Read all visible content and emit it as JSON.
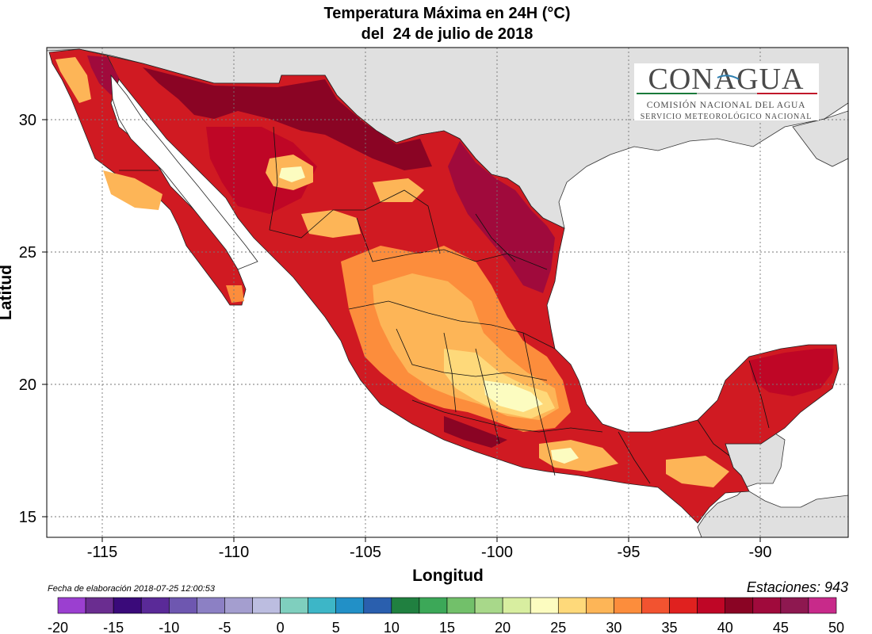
{
  "title_line1": "Temperatura Máxima en 24H (°C)",
  "title_line2": "del  24 de julio de 2018",
  "x_axis": {
    "title": "Longitud",
    "ticks": [
      "-115",
      "-110",
      "-105",
      "-100",
      "-95",
      "-90"
    ]
  },
  "y_axis": {
    "title": "Latitud",
    "ticks": [
      "30",
      "25",
      "20",
      "15"
    ]
  },
  "logo": {
    "name": "CONAGUA",
    "line1": "COMISIÓN NACIONAL DEL AGUA",
    "line2": "SERVICIO METEOROLÓGICO NACIONAL"
  },
  "fecha": "Fecha de elaboración 2018-07-25 12:00:53",
  "estaciones": "Estaciones:  943",
  "colorbar": {
    "labels": [
      "-20",
      "-15",
      "-10",
      "-5",
      "0",
      "5",
      "10",
      "15",
      "20",
      "25",
      "30",
      "35",
      "40",
      "45",
      "50"
    ],
    "colors": [
      "#9b3fd0",
      "#6a2d90",
      "#3a0a7a",
      "#5a2a98",
      "#6e57b0",
      "#8c80c4",
      "#a49ecf",
      "#bcbde0",
      "#7fcfbe",
      "#3db6c7",
      "#2290c7",
      "#2a5fae",
      "#208040",
      "#3ca858",
      "#72c06a",
      "#a8d88a",
      "#d8eea0",
      "#fcfcc0",
      "#fed97a",
      "#fdb557",
      "#fc8d3c",
      "#f25330",
      "#e0211f",
      "#bf0626",
      "#8a0424",
      "#a00a3c",
      "#8e1850",
      "#c82a8a"
    ]
  },
  "map": {
    "ocean_color": "#ffffff",
    "land_outside_color": "#e0e0e0",
    "temperature_colors": {
      "t25": "#fcfcc0",
      "t27": "#fed97a",
      "t30": "#fdb557",
      "t32": "#fc8d3c",
      "t35": "#f25330",
      "t37": "#e0211f",
      "t40": "#bf0626",
      "t42": "#8a0424",
      "t45": "#a00a3c"
    }
  }
}
